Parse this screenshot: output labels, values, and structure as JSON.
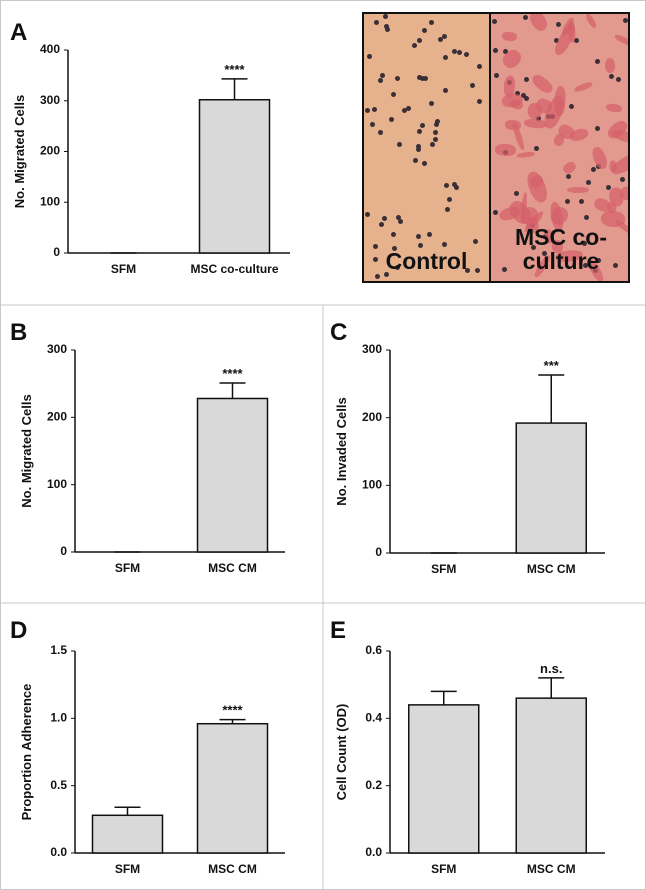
{
  "chart_data": [
    {
      "type": "bar",
      "panel": "A",
      "y_label": "No. Migrated Cells",
      "categories": [
        "SFM",
        "MSC co-culture"
      ],
      "values": [
        0,
        302
      ],
      "errors": [
        0,
        41
      ],
      "annotations": [
        null,
        "****"
      ],
      "color": "#d9d9d9",
      "ylim": [
        0,
        400
      ],
      "yticks": [
        0,
        100,
        200,
        300,
        400
      ]
    },
    {
      "type": "bar",
      "panel": "B",
      "y_label": "No. Migrated Cells",
      "categories": [
        "SFM",
        "MSC CM"
      ],
      "values": [
        0,
        228
      ],
      "errors": [
        0,
        23
      ],
      "annotations": [
        null,
        "****"
      ],
      "color": "#d9d9d9",
      "ylim": [
        0,
        300
      ],
      "yticks": [
        0,
        100,
        200,
        300
      ]
    },
    {
      "type": "bar",
      "panel": "C",
      "y_label": "No. Invaded Cells",
      "categories": [
        "SFM",
        "MSC CM"
      ],
      "values": [
        0,
        192
      ],
      "errors": [
        0,
        71
      ],
      "annotations": [
        null,
        "***"
      ],
      "color": "#d9d9d9",
      "ylim": [
        0,
        300
      ],
      "yticks": [
        0,
        100,
        200,
        300
      ]
    },
    {
      "type": "bar",
      "panel": "D",
      "y_label": "Proportion Adherence",
      "categories": [
        "SFM",
        "MSC CM"
      ],
      "values": [
        0.28,
        0.96
      ],
      "errors": [
        0.06,
        0.03
      ],
      "annotations": [
        null,
        "****"
      ],
      "color": "#d9d9d9",
      "ylim": [
        0,
        1.5
      ],
      "yticks": [
        {
          "value": 0,
          "label": "0.0"
        },
        {
          "value": 0.5,
          "label": "0.5"
        },
        {
          "value": 1,
          "label": "1.0"
        },
        {
          "value": 1.5,
          "label": "1.5"
        }
      ]
    },
    {
      "type": "bar",
      "panel": "E",
      "y_label": "Cell Count (OD)",
      "categories": [
        "SFM",
        "MSC CM"
      ],
      "values": [
        0.44,
        0.46
      ],
      "errors": [
        0.04,
        0.06
      ],
      "annotations": [
        null,
        "n.s."
      ],
      "color": "#d9d9d9",
      "ylim": [
        0,
        0.6
      ],
      "yticks": [
        {
          "value": 0,
          "label": "0.0"
        },
        {
          "value": 0.2,
          "label": "0.2"
        },
        {
          "value": 0.4,
          "label": "0.4"
        },
        {
          "value": 0.6,
          "label": "0.6"
        }
      ]
    }
  ],
  "micrograph": {
    "labels": [
      "Control",
      "MSC co-culture"
    ]
  }
}
